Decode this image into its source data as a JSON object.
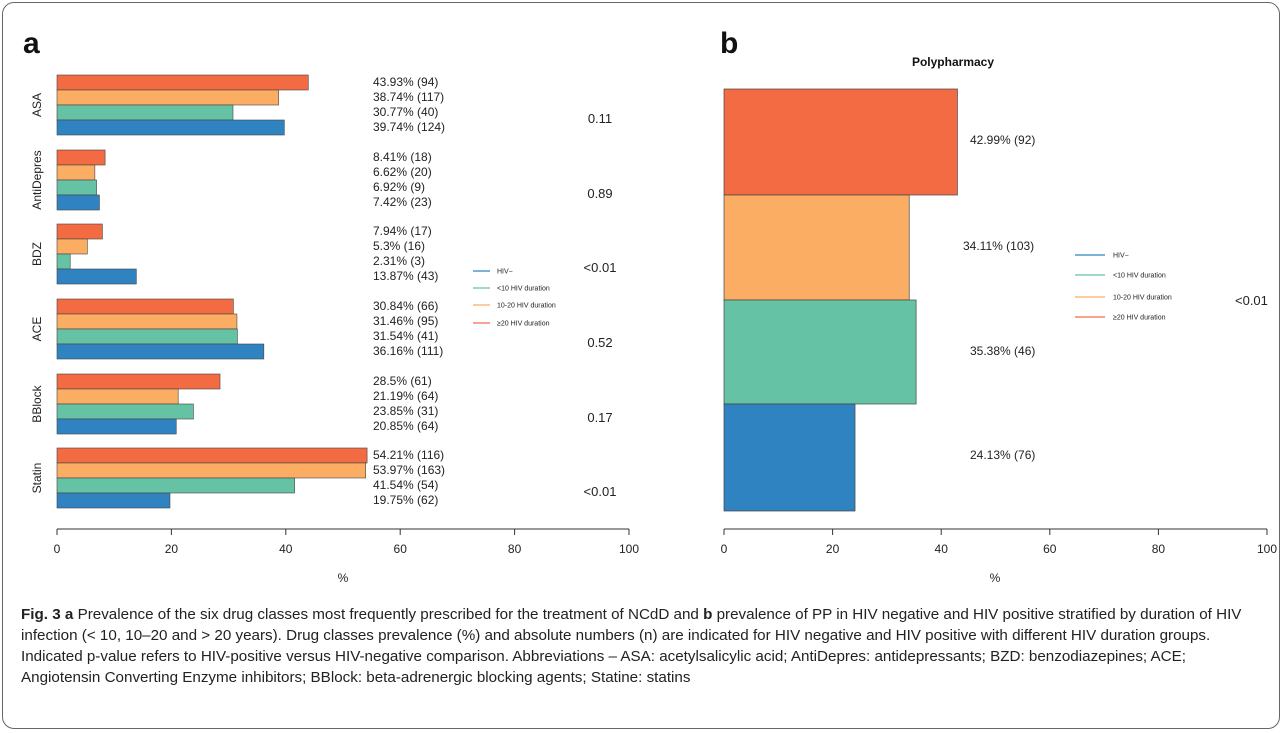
{
  "chart_data": [
    {
      "panel": "a",
      "type": "bar",
      "orientation": "horizontal",
      "xlabel": "%",
      "xlim": [
        0,
        100
      ],
      "xticks": [
        "0",
        "20",
        "40",
        "60",
        "80",
        "100"
      ],
      "series_colors": {
        "≥20 HIV duration": "#f26b43",
        "10-20 HIV duration": "#fbad63",
        "<10 HIV duration": "#66c2a4",
        "HIV−": "#2f83c0"
      },
      "legend": [
        {
          "name": "HIV−",
          "color": "#2f83c0"
        },
        {
          "name": "<10 HIV duration",
          "color": "#66c2a4"
        },
        {
          "name": "10-20 HIV duration",
          "color": "#fbad63"
        },
        {
          "name": "≥20 HIV duration",
          "color": "#f26b43"
        }
      ],
      "legend_position": "right",
      "groups": [
        {
          "name": "ASA",
          "p_value": "0.11",
          "bars": [
            {
              "series": "≥20 HIV duration",
              "value": 43.93,
              "label": "43.93% (94)"
            },
            {
              "series": "10-20 HIV duration",
              "value": 38.74,
              "label": "38.74% (117)"
            },
            {
              "series": "<10 HIV duration",
              "value": 30.77,
              "label": "30.77% (40)"
            },
            {
              "series": "HIV−",
              "value": 39.74,
              "label": "39.74% (124)"
            }
          ]
        },
        {
          "name": "AntiDepres",
          "p_value": "0.89",
          "bars": [
            {
              "series": "≥20 HIV duration",
              "value": 8.41,
              "label": "8.41% (18)"
            },
            {
              "series": "10-20 HIV duration",
              "value": 6.62,
              "label": "6.62% (20)"
            },
            {
              "series": "<10 HIV duration",
              "value": 6.92,
              "label": "6.92% (9)"
            },
            {
              "series": "HIV−",
              "value": 7.42,
              "label": "7.42% (23)"
            }
          ]
        },
        {
          "name": "BDZ",
          "p_value": "<0.01",
          "bars": [
            {
              "series": "≥20 HIV duration",
              "value": 7.94,
              "label": "7.94% (17)"
            },
            {
              "series": "10-20 HIV duration",
              "value": 5.3,
              "label": "5.3% (16)"
            },
            {
              "series": "<10 HIV duration",
              "value": 2.31,
              "label": "2.31% (3)"
            },
            {
              "series": "HIV−",
              "value": 13.87,
              "label": "13.87% (43)"
            }
          ]
        },
        {
          "name": "ACE",
          "p_value": "0.52",
          "bars": [
            {
              "series": "≥20 HIV duration",
              "value": 30.84,
              "label": "30.84% (66)"
            },
            {
              "series": "10-20 HIV duration",
              "value": 31.46,
              "label": "31.46% (95)"
            },
            {
              "series": "<10 HIV duration",
              "value": 31.54,
              "label": "31.54% (41)"
            },
            {
              "series": "HIV−",
              "value": 36.16,
              "label": "36.16% (111)"
            }
          ]
        },
        {
          "name": "BBlock",
          "p_value": "0.17",
          "bars": [
            {
              "series": "≥20 HIV duration",
              "value": 28.5,
              "label": "28.5% (61)"
            },
            {
              "series": "10-20 HIV duration",
              "value": 21.19,
              "label": "21.19% (64)"
            },
            {
              "series": "<10 HIV duration",
              "value": 23.85,
              "label": "23.85% (31)"
            },
            {
              "series": "HIV−",
              "value": 20.85,
              "label": "20.85% (64)"
            }
          ]
        },
        {
          "name": "Statin",
          "p_value": "<0.01",
          "bars": [
            {
              "series": "≥20 HIV duration",
              "value": 54.21,
              "label": "54.21% (116)"
            },
            {
              "series": "10-20 HIV duration",
              "value": 53.97,
              "label": "53.97% (163)"
            },
            {
              "series": "<10 HIV duration",
              "value": 41.54,
              "label": "41.54% (54)"
            },
            {
              "series": "HIV−",
              "value": 19.75,
              "label": "19.75% (62)"
            }
          ]
        }
      ]
    },
    {
      "panel": "b",
      "type": "bar",
      "orientation": "horizontal",
      "title": "Polypharmacy",
      "xlabel": "%",
      "xlim": [
        0,
        100
      ],
      "xticks": [
        "0",
        "20",
        "40",
        "60",
        "80",
        "100"
      ],
      "p_value": "<0.01",
      "legend": [
        {
          "name": "HIV−",
          "color": "#2f83c0"
        },
        {
          "name": "<10 HIV duration",
          "color": "#66c2a4"
        },
        {
          "name": "10-20 HIV duration",
          "color": "#fbad63"
        },
        {
          "name": "≥20  HIV duration",
          "color": "#f26b43"
        }
      ],
      "legend_position": "right",
      "bars": [
        {
          "series": "≥20 HIV duration",
          "value": 42.99,
          "label": "42.99% (92)",
          "color": "#f26b43"
        },
        {
          "series": "10-20 HIV duration",
          "value": 34.11,
          "label": "34.11% (103)",
          "color": "#fbad63"
        },
        {
          "series": "<10 HIV duration",
          "value": 35.38,
          "label": "35.38% (46)",
          "color": "#66c2a4"
        },
        {
          "series": "HIV−",
          "value": 24.13,
          "label": "24.13% (76)",
          "color": "#2f83c0"
        }
      ]
    }
  ],
  "caption": {
    "fig_label": "Fig. 3",
    "a": "a",
    "part1": " Prevalence of the six drug classes most frequently prescribed for the treatment of NCdD and ",
    "b": "b",
    "part2": " prevalence of PP in HIV negative and HIV positive stratified by duration of HIV infection (< 10, 10–20 and > 20 years). Drug classes prevalence (%) and absolute numbers (n) are indicated for HIV negative and HIV positive with different HIV duration groups. Indicated p-value refers to HIV-positive versus HIV-negative comparison. Abbreviations – ASA: acetylsalicylic acid; AntiDepres: antidepressants; BZD: benzodiazepines; ACE; Angiotensin Converting Enzyme inhibitors; BBlock: beta-adrenergic blocking agents; Statine: statins"
  }
}
